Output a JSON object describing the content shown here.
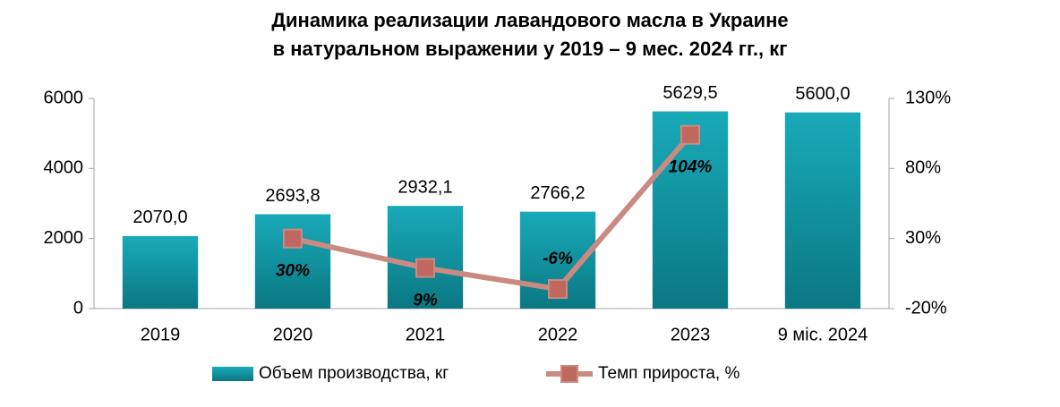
{
  "chart_data": {
    "type": "bar",
    "title": [
      "Динамика реализации лавандового масла в Украине",
      "в натуральном выражении у 2019 – 9 мес. 2024 гг., кг"
    ],
    "categories": [
      "2019",
      "2020",
      "2021",
      "2022",
      "2023",
      "9 міс. 2024"
    ],
    "series": [
      {
        "name": "Объем производства, кг",
        "type": "bar",
        "color": "#149fae",
        "values": [
          2070.0,
          2693.8,
          2932.1,
          2766.2,
          5629.5,
          5600.0
        ],
        "value_labels": [
          "2070,0",
          "2693,8",
          "2932,1",
          "2766,2",
          "5629,5",
          "5600,0"
        ]
      },
      {
        "name": "Темп прироста, %",
        "type": "line",
        "axis": "y2",
        "color": "#c98a82",
        "marker_color": "#c0685e",
        "values": [
          null,
          30,
          9,
          -6,
          104,
          null
        ],
        "value_labels": [
          null,
          "30%",
          "9%",
          "-6%",
          "104%",
          null
        ]
      }
    ],
    "ylim": [
      0,
      6000
    ],
    "yticks": [
      0,
      2000,
      4000,
      6000
    ],
    "y2lim": [
      -20,
      130
    ],
    "y2ticks": [
      {
        "value": -20,
        "label": "-20%"
      },
      {
        "value": 30,
        "label": "30%"
      },
      {
        "value": 80,
        "label": "80%"
      },
      {
        "value": 130,
        "label": "130%"
      }
    ],
    "grid": false,
    "legend": "bottom"
  }
}
